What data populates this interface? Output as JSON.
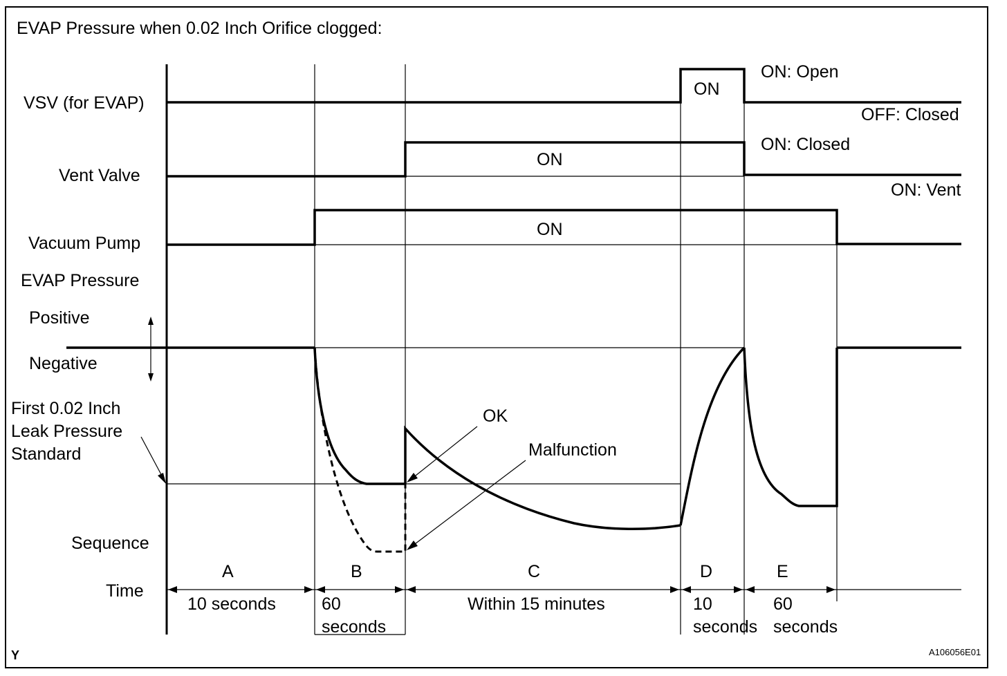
{
  "title": "EVAP Pressure when 0.02 Inch Orifice clogged:",
  "rows": {
    "vsv": "VSV (for EVAP)",
    "vent_valve": "Vent Valve",
    "vacuum_pump": "Vacuum Pump",
    "evap_pressure": "EVAP Pressure",
    "positive": "Positive",
    "negative": "Negative",
    "leak_standard": [
      "First 0.02 Inch",
      "Leak Pressure",
      "Standard"
    ],
    "sequence": "Sequence",
    "time": "Time"
  },
  "states": {
    "vsv_on": "ON",
    "vsv_on_desc": "ON: Open",
    "vsv_off_desc": "OFF: Closed",
    "vent_on": "ON",
    "vent_on_desc": "ON: Closed",
    "vent_off_desc": "ON: Vent",
    "pump_on": "ON"
  },
  "annotations": {
    "ok": "OK",
    "malfunction": "Malfunction"
  },
  "sequence": [
    {
      "step": "A",
      "time": [
        "10 seconds"
      ]
    },
    {
      "step": "B",
      "time": [
        "60",
        "seconds"
      ]
    },
    {
      "step": "C",
      "time": [
        "Within 15 minutes"
      ]
    },
    {
      "step": "D",
      "time": [
        "10",
        "seconds"
      ]
    },
    {
      "step": "E",
      "time": [
        "60",
        "seconds"
      ]
    }
  ],
  "footer": {
    "left": "Y",
    "right": "A106056E01"
  }
}
